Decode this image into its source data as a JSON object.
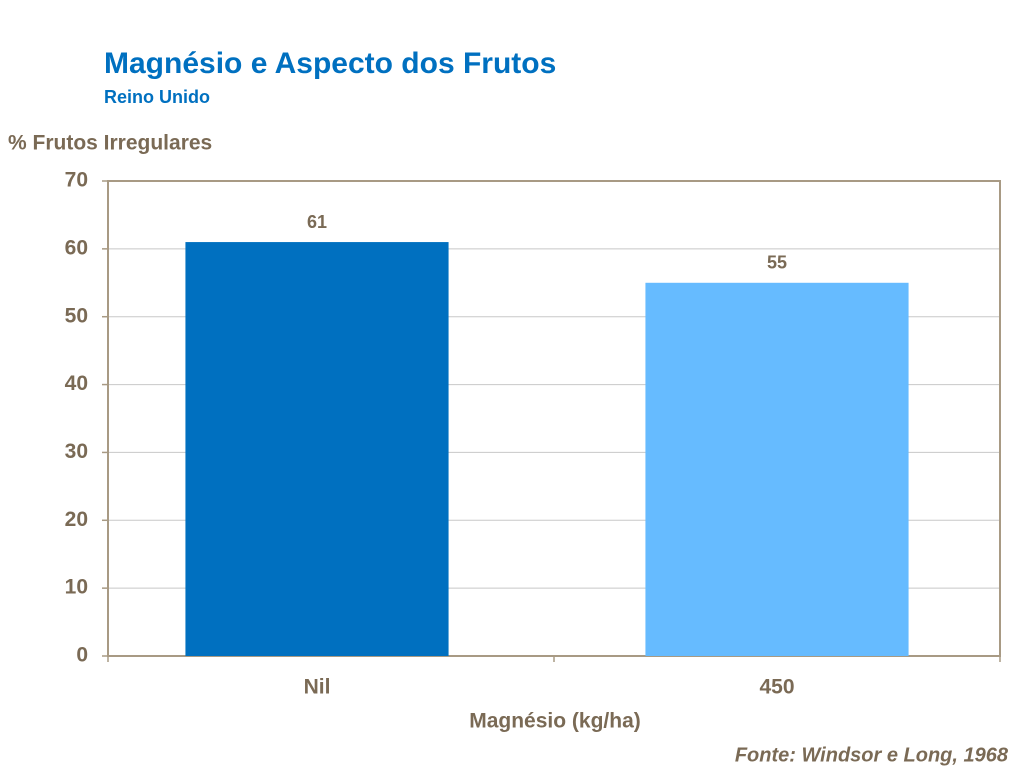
{
  "chart_data": {
    "type": "bar",
    "title": "Magnésio e Aspecto dos Frutos",
    "subtitle": "Reino Unido",
    "y_label": "% Frutos Irregulares",
    "x_label": "Magnésio (kg/ha)",
    "source": "Fonte: Windsor e Long, 1968",
    "categories": [
      "Nil",
      "450"
    ],
    "values": [
      61,
      55
    ],
    "colors": [
      "#0070c0",
      "#66bbff"
    ],
    "ylim": [
      0,
      70
    ],
    "yticks": [
      0,
      10,
      20,
      30,
      40,
      50,
      60,
      70
    ],
    "grid": true
  }
}
